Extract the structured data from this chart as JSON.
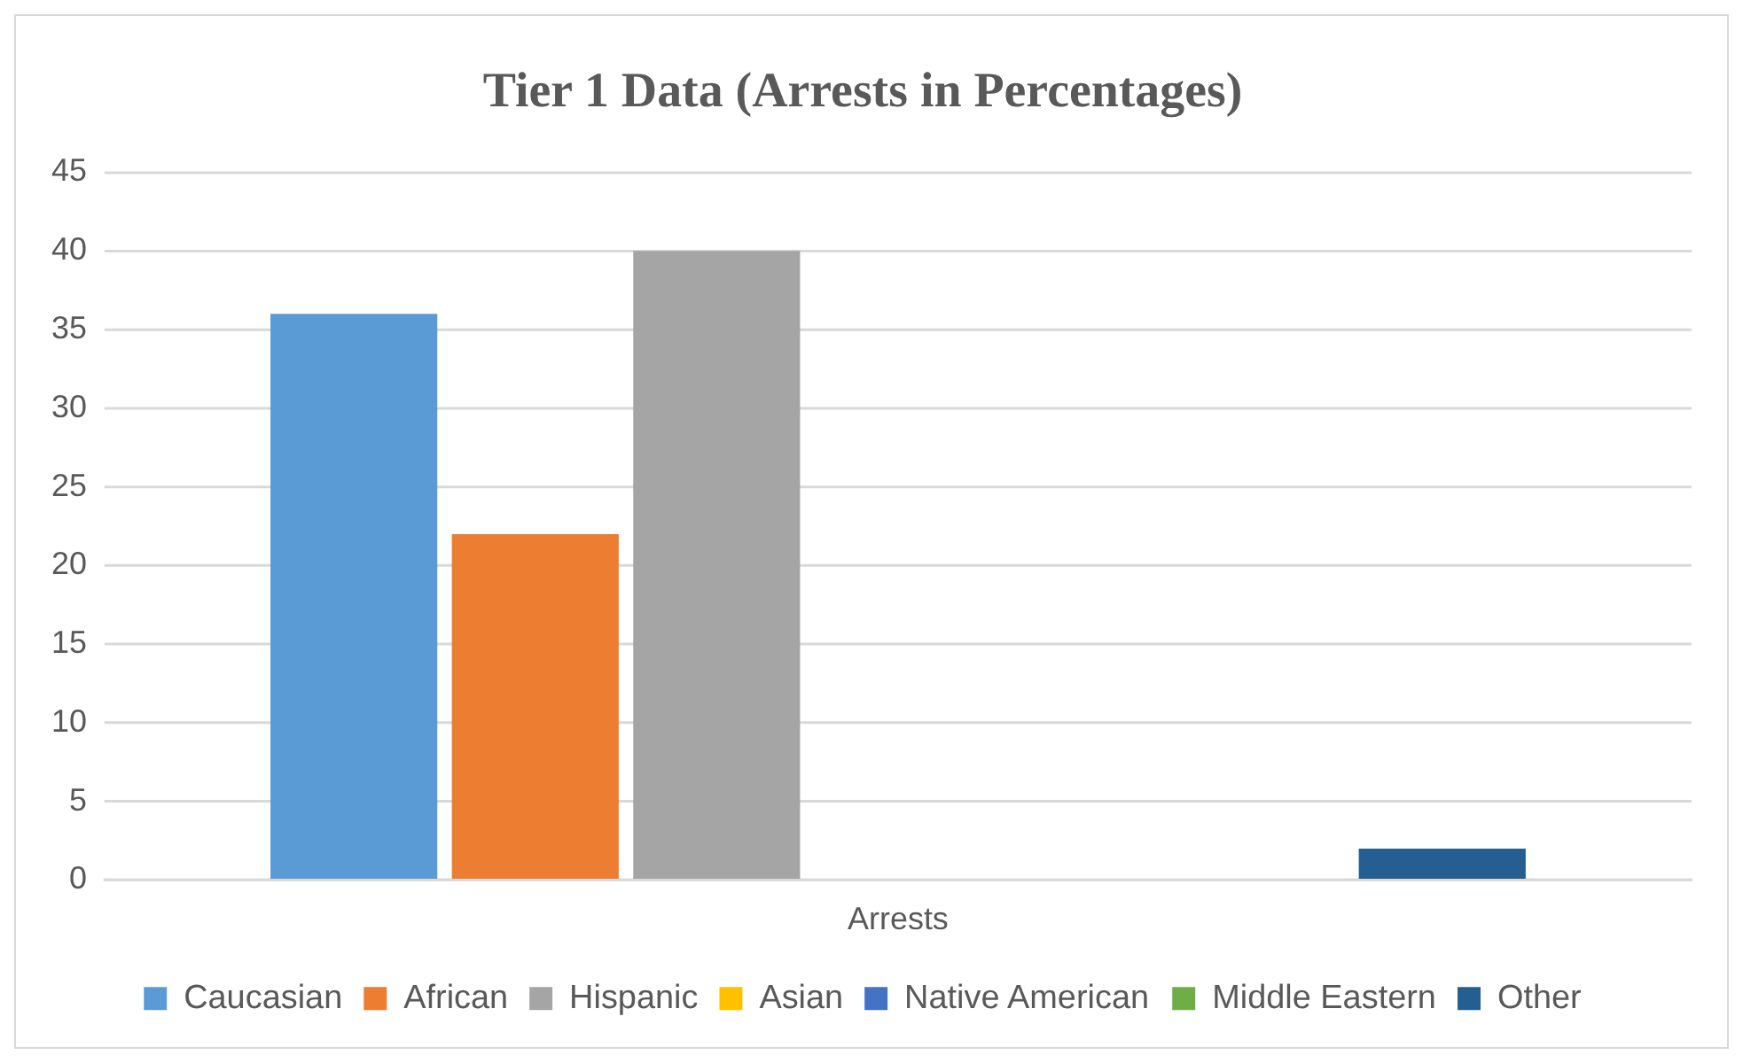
{
  "chart_data": {
    "type": "bar",
    "title": "Tier 1 Data (Arrests in Percentages)",
    "categories": [
      "Arrests"
    ],
    "series": [
      {
        "name": "Caucasian",
        "color": "#5b9bd5",
        "values": [
          36
        ]
      },
      {
        "name": "African",
        "color": "#ed7d31",
        "values": [
          22
        ]
      },
      {
        "name": "Hispanic",
        "color": "#a5a5a5",
        "values": [
          40
        ]
      },
      {
        "name": "Asian",
        "color": "#ffc000",
        "values": [
          0
        ]
      },
      {
        "name": "Native American",
        "color": "#4472c4",
        "values": [
          0
        ]
      },
      {
        "name": "Middle Eastern",
        "color": "#70ad47",
        "values": [
          0
        ]
      },
      {
        "name": "Other",
        "color": "#255e91",
        "values": [
          2
        ]
      }
    ],
    "ylim": [
      0,
      45
    ],
    "yticks": [
      0,
      5,
      10,
      15,
      20,
      25,
      30,
      35,
      40,
      45
    ],
    "grid": "y",
    "legend": "bottom"
  }
}
